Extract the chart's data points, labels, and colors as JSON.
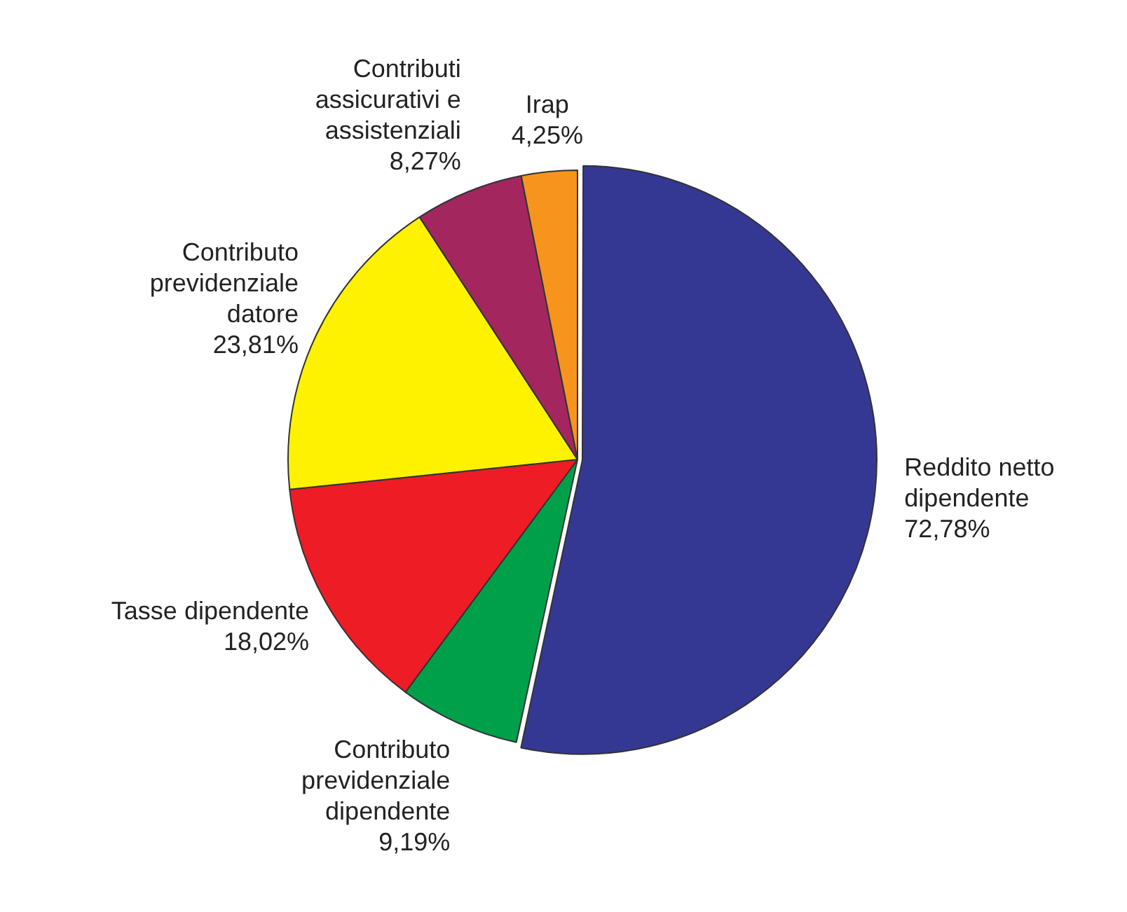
{
  "chart_data": {
    "type": "pie",
    "categories": [
      "Reddito netto dipendente",
      "Contributo previdenziale dipendente",
      "Tasse dipendente",
      "Contributo previdenziale datore",
      "Contributi assicurativi e assistenziali",
      "Irap"
    ],
    "values": [
      72.78,
      9.19,
      18.02,
      23.81,
      8.27,
      4.25
    ],
    "value_labels": [
      "72,78%",
      "9,19%",
      "18,02%",
      "23,81%",
      "8,27%",
      "4,25%"
    ],
    "colors": [
      "#343893",
      "#00a04a",
      "#ee1c25",
      "#fff200",
      "#a3275e",
      "#f7941d"
    ],
    "legend": false
  }
}
